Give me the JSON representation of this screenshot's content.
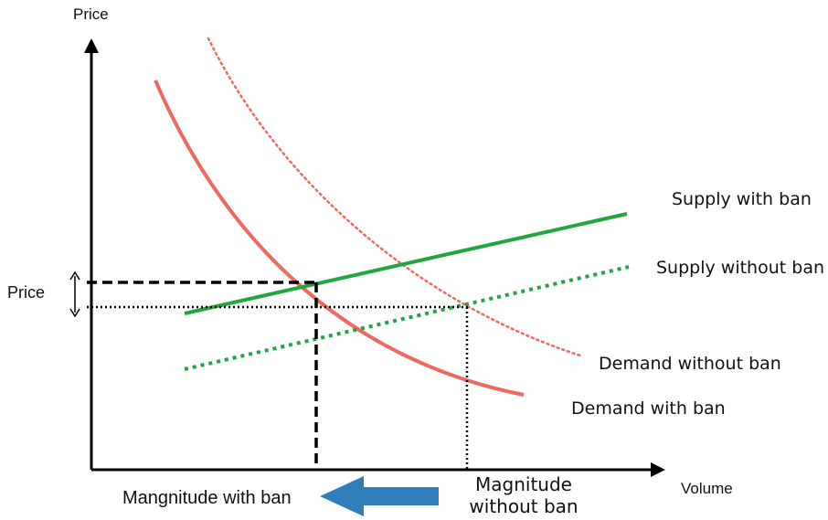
{
  "axes": {
    "y_title": "Price",
    "x_title": "Volume",
    "price_marker_label": "Price"
  },
  "curves": {
    "supply_with_ban": "Supply with ban",
    "supply_without_ban": "Supply without ban",
    "demand_without_ban": "Demand without ban",
    "demand_with_ban": "Demand with ban"
  },
  "magnitude": {
    "with_ban": "Mangnitude with ban",
    "without_ban_line1": "Magnitude",
    "without_ban_line2": "without ban"
  },
  "colors": {
    "supply": "#22a63e",
    "demand": "#ee6a5f",
    "arrow": "#2f7db9",
    "axis": "#000000"
  }
}
